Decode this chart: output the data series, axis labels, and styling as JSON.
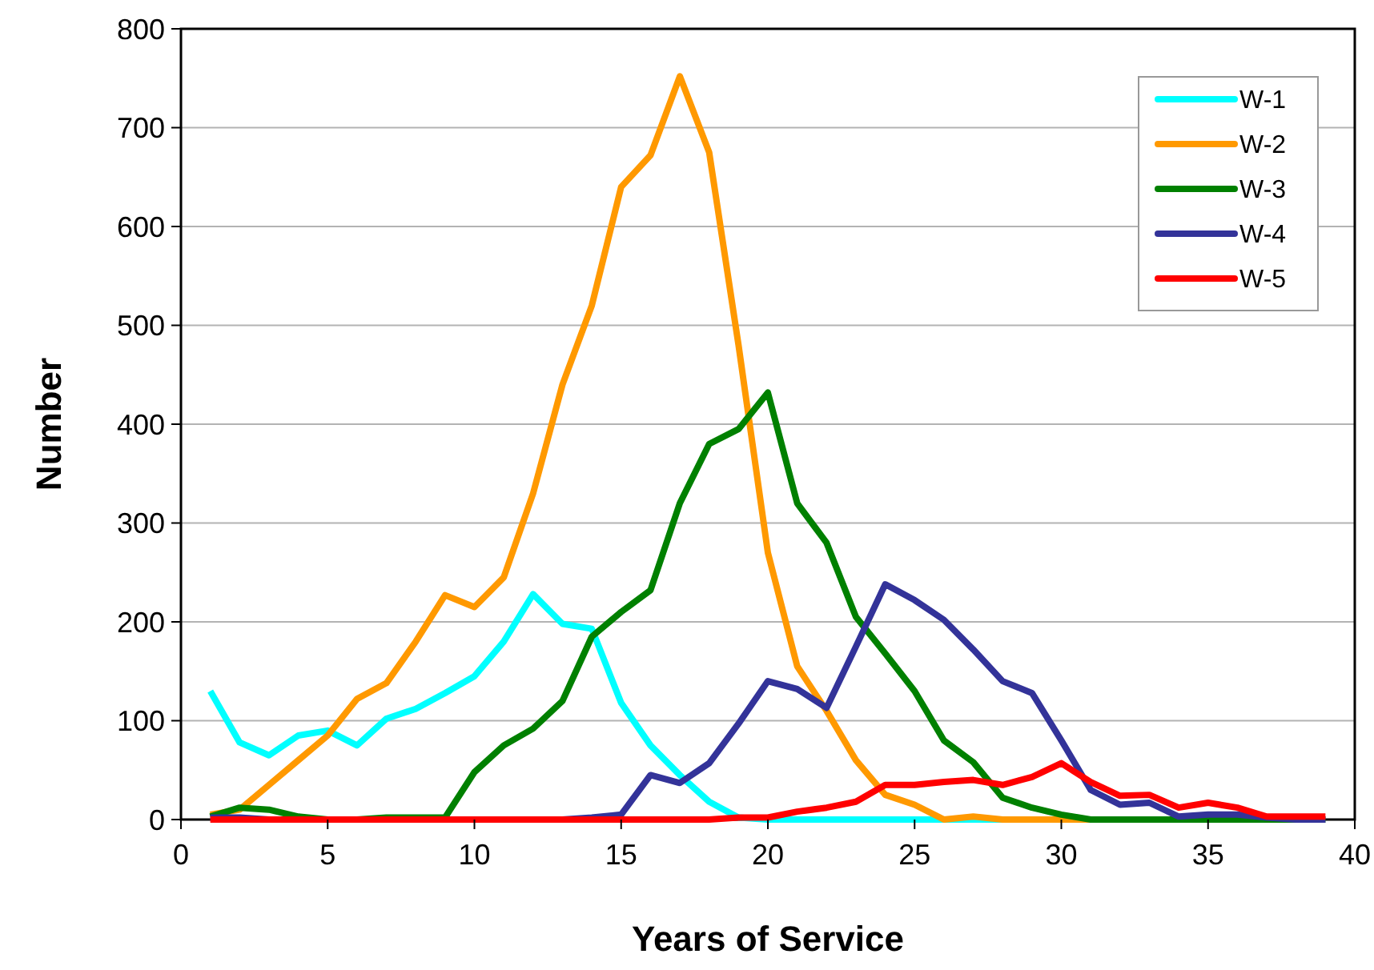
{
  "chart_data": {
    "type": "line",
    "xlabel": "Years of Service",
    "ylabel": "Number",
    "x": [
      1,
      2,
      3,
      4,
      5,
      6,
      7,
      8,
      9,
      10,
      11,
      12,
      13,
      14,
      15,
      16,
      17,
      18,
      19,
      20,
      21,
      22,
      23,
      24,
      25,
      26,
      27,
      28,
      29,
      30,
      31,
      32,
      33,
      34,
      35,
      36,
      37,
      38,
      39
    ],
    "xlim": [
      0,
      40
    ],
    "xticks": [
      0,
      5,
      10,
      15,
      20,
      25,
      30,
      35,
      40
    ],
    "ylim": [
      0,
      800
    ],
    "yticks": [
      0,
      100,
      200,
      300,
      400,
      500,
      600,
      700,
      800
    ],
    "grid": "y",
    "legend": "top right",
    "marker": "none",
    "line_style": "solid",
    "series": [
      {
        "name": "W-1",
        "color": "#00ffff",
        "values": [
          130,
          78,
          65,
          85,
          90,
          75,
          102,
          112,
          128,
          145,
          180,
          228,
          198,
          193,
          118,
          75,
          45,
          18,
          2,
          0,
          0,
          0,
          0,
          0,
          0,
          0,
          0,
          0,
          0,
          null,
          null,
          null,
          null,
          null,
          null,
          null,
          null,
          null,
          null
        ]
      },
      {
        "name": "W-2",
        "color": "#ff9900",
        "values": [
          5,
          10,
          35,
          60,
          85,
          122,
          138,
          180,
          227,
          215,
          245,
          330,
          440,
          520,
          640,
          672,
          752,
          675,
          480,
          270,
          155,
          110,
          60,
          25,
          15,
          0,
          3,
          0,
          0,
          0,
          0,
          0,
          null,
          null,
          null,
          null,
          null,
          null,
          null
        ]
      },
      {
        "name": "W-3",
        "color": "#008000",
        "values": [
          3,
          12,
          10,
          3,
          0,
          0,
          2,
          2,
          2,
          48,
          75,
          92,
          120,
          185,
          210,
          232,
          320,
          380,
          395,
          432,
          320,
          280,
          205,
          168,
          130,
          80,
          58,
          22,
          12,
          5,
          0,
          0,
          0,
          0,
          0,
          0,
          0,
          0,
          0
        ]
      },
      {
        "name": "W-4",
        "color": "#333399",
        "values": [
          2,
          2,
          0,
          0,
          0,
          0,
          0,
          0,
          0,
          0,
          0,
          0,
          0,
          2,
          5,
          45,
          37,
          57,
          97,
          140,
          132,
          113,
          175,
          238,
          222,
          202,
          172,
          140,
          128,
          80,
          30,
          15,
          17,
          3,
          5,
          5,
          2,
          0,
          0
        ]
      },
      {
        "name": "W-5",
        "color": "#ff0000",
        "values": [
          0,
          0,
          0,
          0,
          0,
          0,
          0,
          0,
          0,
          0,
          0,
          0,
          0,
          0,
          0,
          0,
          0,
          0,
          2,
          2,
          8,
          12,
          18,
          35,
          35,
          38,
          40,
          35,
          43,
          57,
          38,
          24,
          25,
          12,
          17,
          12,
          3,
          3,
          3
        ]
      }
    ]
  }
}
